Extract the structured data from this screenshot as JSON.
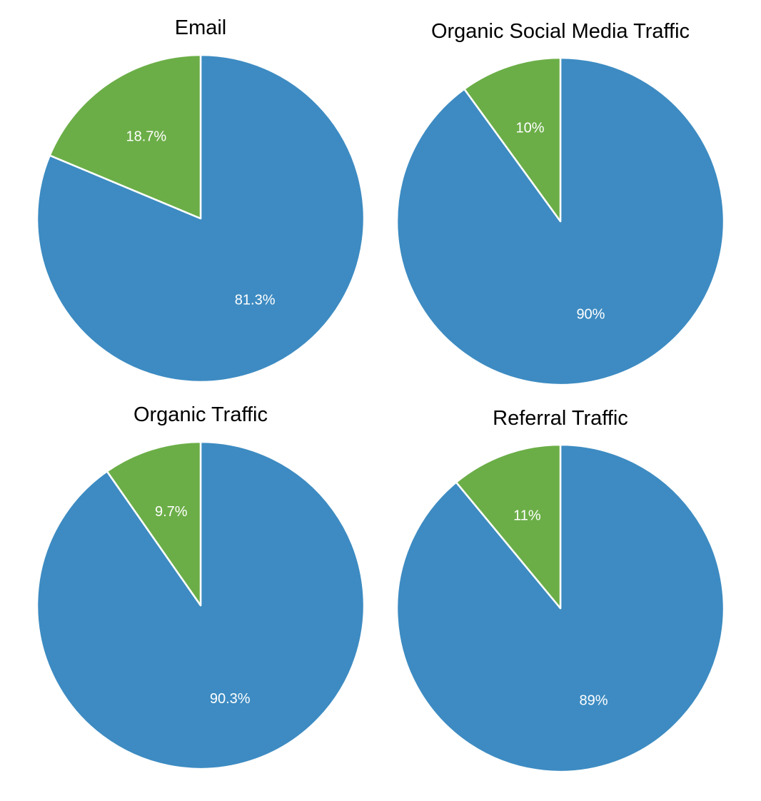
{
  "colors": {
    "primary": "#3d8bc2",
    "secondary": "#6bae47",
    "background": "#ffffff",
    "label_text": "#ffffff",
    "title_text": "#000000"
  },
  "chart_data": [
    {
      "type": "pie",
      "title": "Email",
      "start_angle": "12 o'clock, clockwise",
      "slices": [
        {
          "value": 81.3,
          "label": "81.3%",
          "color": "#3d8bc2"
        },
        {
          "value": 18.7,
          "label": "18.7%",
          "color": "#6bae47"
        }
      ]
    },
    {
      "type": "pie",
      "title": "Organic Social Media Traffic",
      "start_angle": "12 o'clock, clockwise",
      "slices": [
        {
          "value": 90,
          "label": "90%",
          "color": "#3d8bc2"
        },
        {
          "value": 10,
          "label": "10%",
          "color": "#6bae47"
        }
      ]
    },
    {
      "type": "pie",
      "title": "Organic Traffic",
      "start_angle": "12 o'clock, clockwise",
      "slices": [
        {
          "value": 90.3,
          "label": "90.3%",
          "color": "#3d8bc2"
        },
        {
          "value": 9.7,
          "label": "9.7%",
          "color": "#6bae47"
        }
      ]
    },
    {
      "type": "pie",
      "title": "Referral Traffic",
      "start_angle": "12 o'clock, clockwise",
      "slices": [
        {
          "value": 89,
          "label": "89%",
          "color": "#3d8bc2"
        },
        {
          "value": 11,
          "label": "11%",
          "color": "#6bae47"
        }
      ]
    }
  ]
}
